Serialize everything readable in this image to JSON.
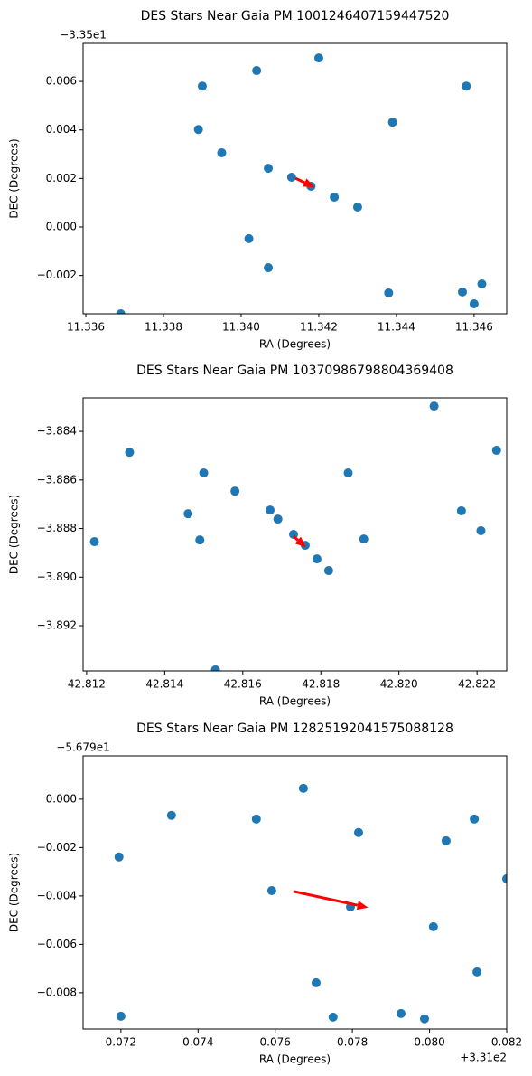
{
  "chart_data": [
    {
      "type": "scatter",
      "title": "DES Stars Near Gaia PM 1001246407159447520",
      "xlabel": "RA (Degrees)",
      "ylabel": "DEC (Degrees)",
      "y_offset_label": "−3.35e1",
      "color": "#1f77b4",
      "x": [
        11.342,
        11.3404,
        11.339,
        11.3458,
        11.3439,
        11.3389,
        11.3395,
        11.3407,
        11.3413,
        11.3418,
        11.3424,
        11.343,
        11.3402,
        11.3407,
        11.3438,
        11.3457,
        11.3462,
        11.346,
        11.3369
      ],
      "y": [
        0.00697,
        0.00645,
        0.00581,
        0.00581,
        0.00432,
        0.00402,
        0.00306,
        0.00242,
        0.00205,
        0.00168,
        0.00123,
        0.00082,
        -0.00048,
        -0.00168,
        -0.00272,
        -0.00268,
        -0.00235,
        -0.00317,
        -0.00358
      ],
      "arrow": {
        "x": 11.3414,
        "y": 0.00201,
        "dx": 0.00049,
        "dy": -0.00037,
        "color": "#ff0000"
      },
      "xlim": [
        11.33593,
        11.34684
      ],
      "ylim": [
        -0.00358,
        0.00757
      ],
      "xticks": [
        11.336,
        11.338,
        {
          "value": 11.34,
          "label": "11.340"
        },
        11.342,
        11.344,
        11.346
      ],
      "yticks": [
        {
          "value": -0.002,
          "label": "−0.002"
        },
        {
          "value": 0,
          "label": "0.000"
        },
        0.002,
        0.004,
        0.006
      ]
    },
    {
      "type": "scatter",
      "title": "DES Stars Near Gaia PM 1037098679880436940​8",
      "xlabel": "RA (Degrees)",
      "ylabel": "DEC (Degrees)",
      "color": "#1f77b4",
      "x": [
        42.8209,
        42.8225,
        42.8131,
        42.815,
        42.8187,
        42.8158,
        42.8216,
        42.8167,
        42.8169,
        42.8146,
        42.8221,
        42.8173,
        42.8149,
        42.8191,
        42.8176,
        42.8179,
        42.8182,
        42.8122,
        42.8153
      ],
      "y": [
        -3.88296,
        -3.88478,
        -3.88486,
        -3.88571,
        -3.88571,
        -3.88646,
        -3.88727,
        -3.88724,
        -3.88761,
        -3.88739,
        -3.88809,
        -3.88824,
        -3.88847,
        -3.88843,
        -3.88869,
        -3.88925,
        -3.88973,
        -3.88854,
        -3.89382
      ],
      "arrow": {
        "x": 42.8173,
        "y": -3.88832,
        "dx": 0.00032,
        "dy": -0.00045,
        "color": "#ff0000"
      },
      "xlim": [
        42.81191,
        42.82276
      ],
      "ylim": [
        -3.89386,
        -3.88262
      ],
      "xticks": [
        42.812,
        42.814,
        42.816,
        42.818,
        {
          "value": 42.82,
          "label": "42.820"
        },
        42.822
      ],
      "yticks": [
        {
          "value": -3.892,
          "label": "−3.892"
        },
        {
          "value": -3.89,
          "label": "−3.890"
        },
        {
          "value": -3.888,
          "label": "−3.888"
        },
        {
          "value": -3.886,
          "label": "−3.886"
        },
        {
          "value": -3.884,
          "label": "−3.884"
        }
      ]
    },
    {
      "type": "scatter",
      "title": "DES Stars Near Gaia PM 1282519204157508812​8",
      "xlabel": "RA (Degrees)",
      "ylabel": "DEC (Degrees)",
      "y_offset_label": "−5.679e1",
      "x_offset_label": "+3.31e2",
      "color": "#1f77b4",
      "x": [
        0.07673,
        0.07331,
        0.07551,
        0.07816,
        0.08116,
        0.08043,
        0.07195,
        0.082,
        0.07591,
        0.07795,
        0.0801,
        0.08123,
        0.07706,
        0.07926,
        0.0775,
        0.07987,
        0.072
      ],
      "y": [
        0.00045,
        -0.00067,
        -0.00082,
        -0.00138,
        -0.00082,
        -0.00172,
        -0.00239,
        -0.00329,
        -0.00378,
        -0.00445,
        -0.00527,
        -0.00714,
        -0.00759,
        -0.00886,
        -0.00901,
        -0.00908,
        -0.00897
      ],
      "arrow": {
        "x": 0.07647,
        "y": -0.00381,
        "dx": 0.00194,
        "dy": -0.00067,
        "color": "#ff0000"
      },
      "xlim": [
        0.07102,
        0.082
      ],
      "ylim": [
        -0.0095,
        0.00179
      ],
      "xticks": [
        0.072,
        0.074,
        0.076,
        0.078,
        {
          "value": 0.08,
          "label": "0.080"
        },
        0.082
      ],
      "yticks": [
        {
          "value": -0.008,
          "label": "−0.008"
        },
        {
          "value": -0.006,
          "label": "−0.006"
        },
        {
          "value": -0.004,
          "label": "−0.004"
        },
        {
          "value": -0.002,
          "label": "−0.002"
        },
        {
          "value": 0,
          "label": "0.000"
        }
      ]
    }
  ]
}
